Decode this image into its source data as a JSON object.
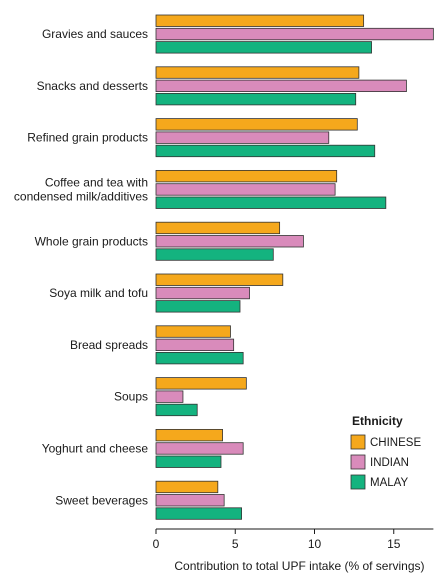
{
  "chart_data": {
    "type": "bar",
    "orientation": "horizontal",
    "categories": [
      [
        "Gravies and sauces"
      ],
      [
        "Snacks and desserts"
      ],
      [
        "Refined grain products"
      ],
      [
        "Coffee and tea with",
        "condensed milk/additives"
      ],
      [
        "Whole grain products"
      ],
      [
        "Soya milk and tofu"
      ],
      [
        "Bread spreads"
      ],
      [
        "Soups"
      ],
      [
        "Yoghurt and cheese"
      ],
      [
        "Sweet beverages"
      ]
    ],
    "series": [
      {
        "name": "CHINESE",
        "color": "#f5a81c",
        "values": [
          13.1,
          12.8,
          12.7,
          11.4,
          7.8,
          8.0,
          4.7,
          5.7,
          4.2,
          3.9
        ]
      },
      {
        "name": "INDIAN",
        "color": "#d98bbb",
        "values": [
          17.5,
          15.8,
          10.9,
          11.3,
          9.3,
          5.9,
          4.9,
          1.7,
          5.5,
          4.3
        ]
      },
      {
        "name": "MALAY",
        "color": "#14b37f",
        "values": [
          13.6,
          12.6,
          13.8,
          14.5,
          7.4,
          5.3,
          5.5,
          2.6,
          4.1,
          5.4
        ]
      }
    ],
    "xlabel": "Contribution to total UPF intake (% of servings)",
    "xlim": [
      0,
      17.5
    ],
    "xticks": [
      0,
      5,
      10,
      15
    ],
    "grid": false,
    "legend": {
      "title": "Ethnicity",
      "placement": "bottom-right"
    }
  }
}
